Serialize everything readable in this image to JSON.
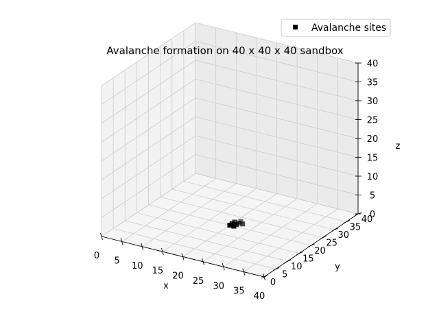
{
  "chart_data": {
    "type": "scatter",
    "projection": "3d",
    "title": "Avalanche formation on 40 x 40 x 40 sandbox",
    "xlabel": "x",
    "ylabel": "y",
    "zlabel": "z",
    "xlim": [
      0,
      40
    ],
    "ylim": [
      0,
      40
    ],
    "zlim": [
      0,
      40
    ],
    "xticks": [
      "0",
      "5",
      "10",
      "15",
      "20",
      "25",
      "30",
      "35",
      "40"
    ],
    "yticks": [
      "0",
      "5",
      "10",
      "15",
      "20",
      "25",
      "30",
      "35",
      "40"
    ],
    "zticks": [
      "0",
      "5",
      "10",
      "15",
      "20",
      "25",
      "30",
      "35",
      "40"
    ],
    "grid": true,
    "legend_position": "top-right",
    "series": [
      {
        "name": "Avalanche sites",
        "marker": "square",
        "color": "#000000",
        "points": [
          {
            "x": 20,
            "y": 20,
            "z": 0
          },
          {
            "x": 20,
            "y": 21,
            "z": 0
          },
          {
            "x": 21,
            "y": 20,
            "z": 0
          },
          {
            "x": 20,
            "y": 22,
            "z": 0
          },
          {
            "x": 21,
            "y": 21,
            "z": 0
          },
          {
            "x": 21,
            "y": 22,
            "z": 0
          },
          {
            "x": 22,
            "y": 22,
            "z": 0
          },
          {
            "x": 21,
            "y": 23,
            "z": 0
          }
        ]
      }
    ]
  }
}
